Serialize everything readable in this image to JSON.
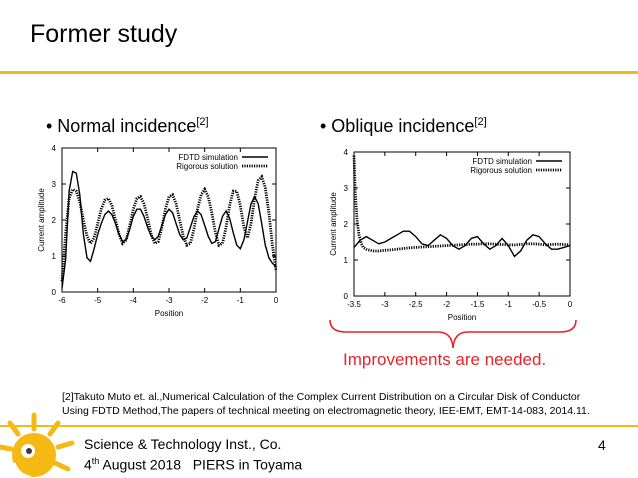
{
  "slide": {
    "title": "Former study",
    "page_number": "4",
    "accent_color": "#f5b913"
  },
  "left": {
    "bullet": "• Normal incidence",
    "bullet_ref": "[2]"
  },
  "right": {
    "bullet": "• Oblique incidence",
    "bullet_ref": "[2]"
  },
  "callout": {
    "text": "Improvements are needed.",
    "color": "#e3262b"
  },
  "reference": {
    "line1": "[2]Takuto Muto et. al.,Numerical Calculation of the Complex Current Distribution on a Circular Disk of Conductor",
    "line2": "Using FDTD Method,The papers of technical meeting on electromagnetic theory, IEE-EMT, EMT-14-083, 2014.11."
  },
  "footer": {
    "org": "Science & Technology Inst., Co.",
    "date_day": "4",
    "date_sup": "th",
    "date_rest": " August 2018   PIERS in Toyama"
  },
  "chart_data": [
    {
      "type": "line",
      "title": "",
      "xlabel": "Position",
      "ylabel": "Current amplitude",
      "xlim": [
        -6,
        0
      ],
      "ylim": [
        0,
        4
      ],
      "xticks": [
        "-6",
        "-5",
        "-4",
        "-3",
        "-2",
        "-1",
        "0"
      ],
      "yticks": [
        "0",
        "1",
        "2",
        "3",
        "4"
      ],
      "legend_position": "top-right",
      "series": [
        {
          "name": "FDTD simulation",
          "style": "solid",
          "x": [
            -6,
            -5.9,
            -5.8,
            -5.7,
            -5.6,
            -5.5,
            -5.4,
            -5.3,
            -5.2,
            -5.1,
            -5.0,
            -4.9,
            -4.8,
            -4.7,
            -4.6,
            -4.5,
            -4.4,
            -4.3,
            -4.2,
            -4.1,
            -4.0,
            -3.9,
            -3.8,
            -3.7,
            -3.6,
            -3.5,
            -3.4,
            -3.3,
            -3.2,
            -3.1,
            -3.0,
            -2.9,
            -2.8,
            -2.7,
            -2.6,
            -2.5,
            -2.4,
            -2.3,
            -2.2,
            -2.1,
            -2.0,
            -1.9,
            -1.8,
            -1.7,
            -1.6,
            -1.5,
            -1.4,
            -1.3,
            -1.2,
            -1.1,
            -1.0,
            -0.9,
            -0.8,
            -0.7,
            -0.6,
            -0.5,
            -0.4,
            -0.3,
            -0.2,
            -0.1,
            0
          ],
          "y": [
            0.1,
            0.9,
            2.8,
            3.35,
            3.3,
            2.7,
            1.6,
            0.95,
            0.85,
            1.2,
            1.6,
            1.9,
            2.15,
            2.25,
            2.15,
            1.9,
            1.6,
            1.4,
            1.45,
            1.75,
            2.1,
            2.3,
            2.3,
            2.1,
            1.8,
            1.55,
            1.45,
            1.55,
            1.85,
            2.15,
            2.3,
            2.2,
            1.9,
            1.6,
            1.45,
            1.5,
            1.8,
            2.1,
            2.25,
            2.15,
            1.85,
            1.55,
            1.35,
            1.4,
            1.75,
            2.1,
            2.25,
            2.05,
            1.65,
            1.3,
            1.2,
            1.45,
            1.95,
            2.45,
            2.65,
            2.45,
            1.9,
            1.3,
            0.95,
            0.8,
            0.7
          ]
        },
        {
          "name": "Rigorous solution",
          "style": "dotted",
          "x": [
            -6,
            -5.9,
            -5.8,
            -5.7,
            -5.6,
            -5.5,
            -5.4,
            -5.3,
            -5.2,
            -5.1,
            -5.0,
            -4.9,
            -4.8,
            -4.7,
            -4.6,
            -4.5,
            -4.4,
            -4.3,
            -4.2,
            -4.1,
            -4.0,
            -3.9,
            -3.8,
            -3.7,
            -3.6,
            -3.5,
            -3.4,
            -3.3,
            -3.2,
            -3.1,
            -3.0,
            -2.9,
            -2.8,
            -2.7,
            -2.6,
            -2.5,
            -2.4,
            -2.3,
            -2.2,
            -2.1,
            -2.0,
            -1.9,
            -1.8,
            -1.7,
            -1.6,
            -1.5,
            -1.4,
            -1.3,
            -1.2,
            -1.1,
            -1.0,
            -0.9,
            -0.8,
            -0.7,
            -0.6,
            -0.5,
            -0.4,
            -0.3,
            -0.2,
            -0.1,
            0
          ],
          "y": [
            0.3,
            1.6,
            2.6,
            2.85,
            2.8,
            2.5,
            2.0,
            1.55,
            1.35,
            1.5,
            1.9,
            2.3,
            2.55,
            2.6,
            2.4,
            2.0,
            1.6,
            1.35,
            1.45,
            1.85,
            2.3,
            2.6,
            2.65,
            2.45,
            2.05,
            1.6,
            1.35,
            1.4,
            1.8,
            2.3,
            2.65,
            2.7,
            2.45,
            2.0,
            1.55,
            1.3,
            1.35,
            1.75,
            2.3,
            2.7,
            2.85,
            2.65,
            2.2,
            1.65,
            1.3,
            1.35,
            1.8,
            2.4,
            2.8,
            2.8,
            2.4,
            1.8,
            1.5,
            1.9,
            2.6,
            3.1,
            3.2,
            2.9,
            2.2,
            1.3,
            0.6
          ]
        }
      ]
    },
    {
      "type": "line",
      "title": "",
      "xlabel": "Position",
      "ylabel": "Current amplitude",
      "xlim": [
        -3.5,
        0
      ],
      "ylim": [
        0,
        4
      ],
      "xticks": [
        "-3.5",
        "-3",
        "-2.5",
        "-2",
        "-1.5",
        "-1",
        "-0.5",
        "0"
      ],
      "yticks": [
        "0",
        "1",
        "2",
        "3",
        "4"
      ],
      "legend_position": "top-right",
      "series": [
        {
          "name": "FDTD simulation",
          "style": "solid",
          "x": [
            -3.5,
            -3.4,
            -3.3,
            -3.2,
            -3.1,
            -3.0,
            -2.9,
            -2.8,
            -2.7,
            -2.6,
            -2.5,
            -2.4,
            -2.3,
            -2.2,
            -2.1,
            -2.0,
            -1.9,
            -1.8,
            -1.7,
            -1.6,
            -1.5,
            -1.4,
            -1.3,
            -1.2,
            -1.1,
            -1.0,
            -0.9,
            -0.8,
            -0.7,
            -0.6,
            -0.5,
            -0.4,
            -0.3,
            -0.2,
            -0.1,
            0
          ],
          "y": [
            1.35,
            1.55,
            1.65,
            1.55,
            1.45,
            1.5,
            1.6,
            1.7,
            1.8,
            1.8,
            1.65,
            1.45,
            1.4,
            1.55,
            1.7,
            1.6,
            1.4,
            1.3,
            1.4,
            1.6,
            1.65,
            1.45,
            1.3,
            1.4,
            1.6,
            1.4,
            1.1,
            1.25,
            1.55,
            1.7,
            1.65,
            1.45,
            1.3,
            1.3,
            1.35,
            1.4
          ]
        },
        {
          "name": "Rigorous solution",
          "style": "dotted",
          "x": [
            -3.5,
            -3.48,
            -3.45,
            -3.42,
            -3.38,
            -3.35,
            -3.3,
            -3.2,
            -3.1,
            -3.0,
            -2.9,
            -2.8,
            -2.7,
            -2.6,
            -2.5,
            -2.4,
            -2.3,
            -2.2,
            -2.1,
            -2.0,
            -1.9,
            -1.8,
            -1.7,
            -1.6,
            -1.5,
            -1.4,
            -1.3,
            -1.2,
            -1.1,
            -1.0,
            -0.9,
            -0.8,
            -0.7,
            -0.6,
            -0.5,
            -0.4,
            -0.3,
            -0.2,
            -0.1,
            0
          ],
          "y": [
            3.9,
            2.9,
            2.1,
            1.7,
            1.45,
            1.35,
            1.3,
            1.25,
            1.25,
            1.27,
            1.28,
            1.3,
            1.32,
            1.34,
            1.35,
            1.36,
            1.37,
            1.38,
            1.39,
            1.4,
            1.41,
            1.42,
            1.43,
            1.44,
            1.44,
            1.45,
            1.45,
            1.44,
            1.43,
            1.42,
            1.42,
            1.43,
            1.45,
            1.45,
            1.44,
            1.42,
            1.43,
            1.44,
            1.43,
            1.42
          ]
        }
      ]
    }
  ]
}
